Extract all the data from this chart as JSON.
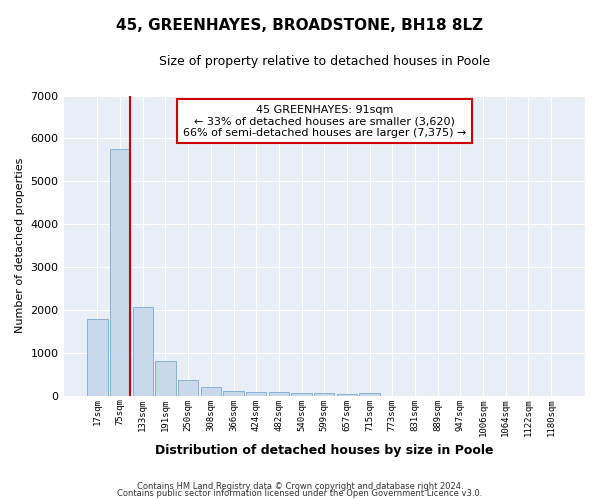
{
  "title_line1": "45, GREENHAYES, BROADSTONE, BH18 8LZ",
  "title_line2": "Size of property relative to detached houses in Poole",
  "xlabel": "Distribution of detached houses by size in Poole",
  "ylabel": "Number of detached properties",
  "bar_labels": [
    "17sqm",
    "75sqm",
    "133sqm",
    "191sqm",
    "250sqm",
    "308sqm",
    "366sqm",
    "424sqm",
    "482sqm",
    "540sqm",
    "599sqm",
    "657sqm",
    "715sqm",
    "773sqm",
    "831sqm",
    "889sqm",
    "947sqm",
    "1006sqm",
    "1064sqm",
    "1122sqm",
    "1180sqm"
  ],
  "bar_values": [
    1780,
    5750,
    2060,
    820,
    370,
    215,
    115,
    95,
    85,
    60,
    55,
    50,
    60,
    0,
    0,
    0,
    0,
    0,
    0,
    0,
    0
  ],
  "bar_color": "#c9d9eb",
  "bar_edge_color": "#7aaacf",
  "vline_color": "#cc0000",
  "vline_index": 1,
  "ylim": [
    0,
    7000
  ],
  "yticks": [
    0,
    1000,
    2000,
    3000,
    4000,
    5000,
    6000,
    7000
  ],
  "annotation_title": "45 GREENHAYES: 91sqm",
  "annotation_line1": "← 33% of detached houses are smaller (3,620)",
  "annotation_line2": "66% of semi-detached houses are larger (7,375) →",
  "annotation_box_facecolor": "#ffffff",
  "annotation_border_color": "#cc0000",
  "footer_line1": "Contains HM Land Registry data © Crown copyright and database right 2024.",
  "footer_line2": "Contains public sector information licensed under the Open Government Licence v3.0.",
  "fig_facecolor": "#ffffff",
  "plot_facecolor": "#e8eef5",
  "grid_color": "#ffffff",
  "title1_fontsize": 11,
  "title2_fontsize": 9,
  "ylabel_fontsize": 8,
  "xlabel_fontsize": 9
}
